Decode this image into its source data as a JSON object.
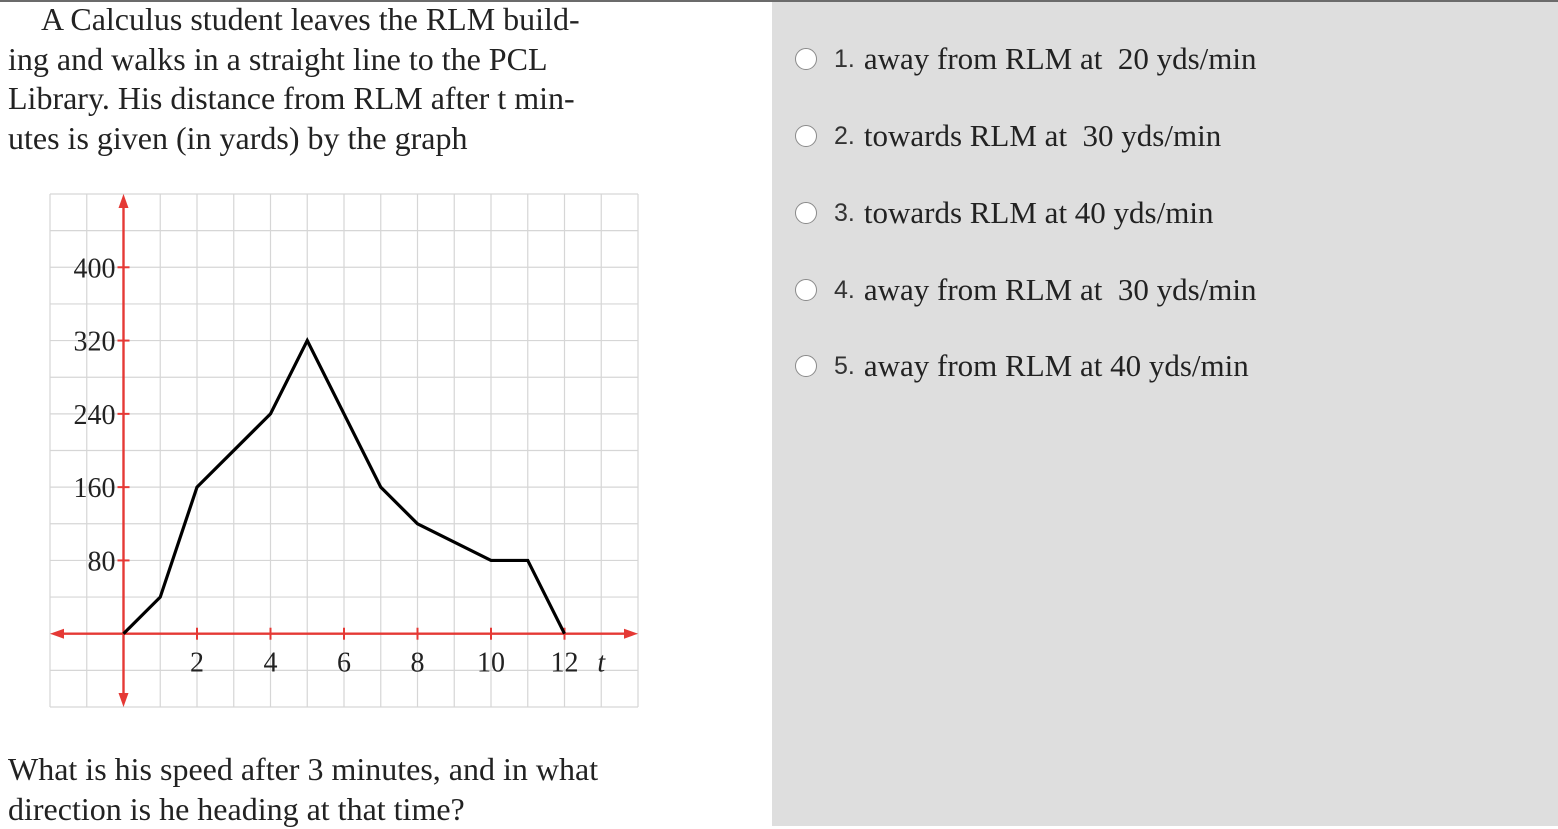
{
  "question": {
    "lines": [
      "A Calculus student leaves the RLM build-",
      "ing and walks in a straight line to the PCL",
      "Library. His distance from RLM after t min-",
      "utes is given (in yards) by the graph"
    ]
  },
  "prompt": {
    "lines": [
      "What is his speed after 3 minutes, and in what",
      "direction is he heading at that time?"
    ]
  },
  "chart_data": {
    "type": "line",
    "x": [
      0,
      1,
      2,
      4,
      5,
      7,
      8,
      10,
      11,
      12
    ],
    "series": [
      {
        "values": [
          0,
          40,
          160,
          240,
          320,
          160,
          120,
          80,
          80,
          0
        ]
      }
    ],
    "x_ticks": [
      "2",
      "4",
      "6",
      "8",
      "10",
      "12"
    ],
    "y_ticks": [
      "80",
      "160",
      "240",
      "320",
      "400"
    ],
    "xlabel": "t",
    "ylabel": "",
    "xlim": [
      -2,
      14
    ],
    "ylim": [
      -80,
      480
    ],
    "grid": true,
    "axis_color": "#e53935",
    "line_color": "#000000"
  },
  "choices": [
    {
      "num": "1.",
      "text": "away from RLM at  20 yds/min"
    },
    {
      "num": "2.",
      "text": "towards RLM at  30 yds/min"
    },
    {
      "num": "3.",
      "text": "towards RLM at 40 yds/min"
    },
    {
      "num": "4.",
      "text": "away from RLM at  30 yds/min"
    },
    {
      "num": "5.",
      "text": "away from RLM at 40 yds/min"
    }
  ]
}
